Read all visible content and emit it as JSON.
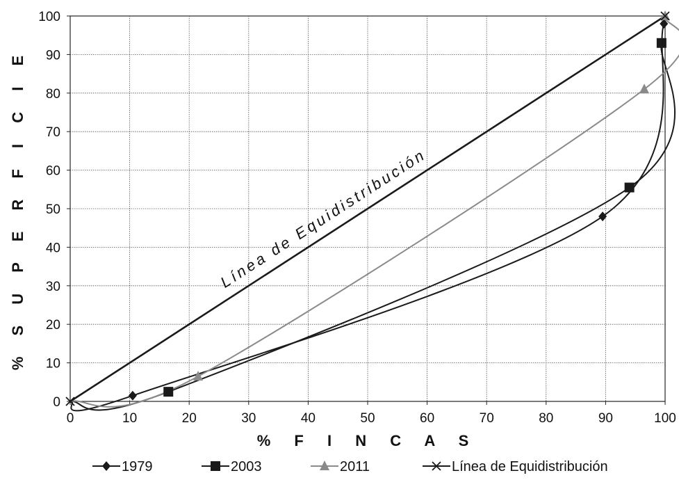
{
  "chart_data": {
    "type": "line",
    "title": "",
    "xlabel": "% F I N C A S",
    "ylabel": "% S U P E R F I C I E",
    "xlim": [
      0,
      100
    ],
    "ylim": [
      0,
      100
    ],
    "x_ticks": [
      "0",
      "10",
      "20",
      "30",
      "40",
      "50",
      "60",
      "70",
      "80",
      "90",
      "100"
    ],
    "y_ticks": [
      "0",
      "10",
      "20",
      "30",
      "40",
      "50",
      "60",
      "70",
      "80",
      "90",
      "100"
    ],
    "grid": true,
    "legend_position": "bottom",
    "annotation": "Línea de Equidistribución",
    "series": [
      {
        "name": "1979",
        "marker": "diamond",
        "color": "#1a1a1a",
        "points": [
          [
            0,
            0
          ],
          [
            10.5,
            1.5
          ],
          [
            89.5,
            48
          ],
          [
            99.8,
            98
          ]
        ]
      },
      {
        "name": "2003",
        "marker": "square",
        "color": "#1a1a1a",
        "points": [
          [
            0,
            0
          ],
          [
            16.5,
            2.5
          ],
          [
            94,
            55.5
          ],
          [
            99.4,
            93
          ]
        ]
      },
      {
        "name": "2011",
        "marker": "triangle",
        "color": "#8a8a8a",
        "points": [
          [
            0,
            0
          ],
          [
            21.5,
            6.5
          ],
          [
            96.5,
            81
          ],
          [
            100,
            100
          ]
        ]
      },
      {
        "name": "Línea de Equidistribución",
        "marker": "x",
        "color": "#1a1a1a",
        "points": [
          [
            0,
            0
          ],
          [
            100,
            100
          ]
        ]
      }
    ]
  }
}
